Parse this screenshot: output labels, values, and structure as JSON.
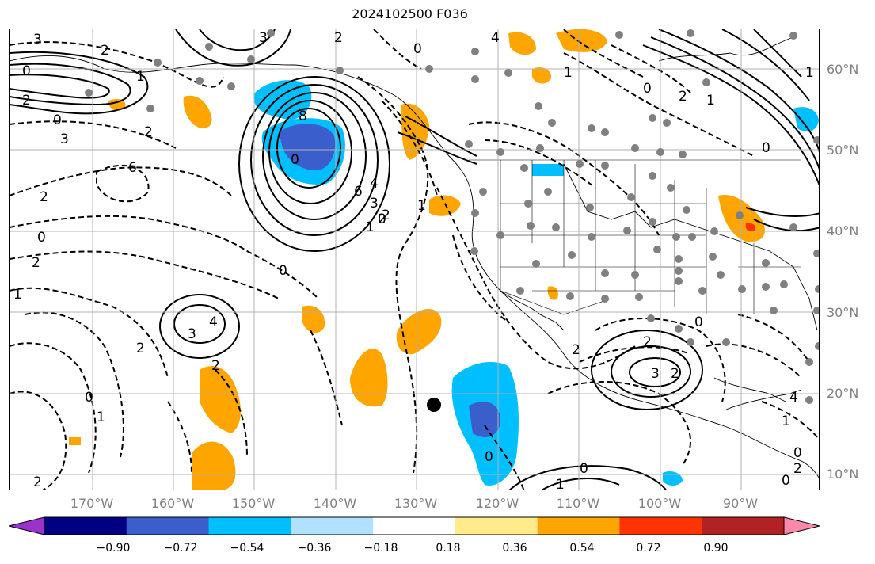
{
  "title": "2024102500 F036",
  "map": {
    "lat_labels": [
      "60°N",
      "50°N",
      "40°N",
      "30°N",
      "20°N",
      "10°N"
    ],
    "lon_labels": [
      "170°W",
      "160°W",
      "150°W",
      "140°W",
      "130°W",
      "120°W",
      "110°W",
      "100°W",
      "90°W"
    ],
    "gridline_color": "#b0b0b0",
    "contour_labels": [
      "3",
      "2",
      "0",
      "1",
      "3",
      "2",
      "0",
      "2",
      "3",
      "2",
      "4",
      "6",
      "2",
      "0",
      "8",
      "0",
      "6",
      "4",
      "3",
      "2",
      "1",
      "0",
      "2",
      "1",
      "0",
      "0",
      "2",
      "2",
      "1",
      "4",
      "3",
      "2",
      "0",
      "1",
      "2",
      "0",
      "1",
      "0",
      "2",
      "4",
      "2",
      "3",
      "2",
      "0",
      "1",
      "0",
      "0",
      "2",
      "1",
      "0",
      "2",
      "1",
      "0",
      "1"
    ],
    "marker": "tropical-cyclone-position"
  },
  "colorbar": {
    "tick_labels": [
      "−0.90",
      "−0.72",
      "−0.54",
      "−0.36",
      "−0.18",
      "0.18",
      "0.36",
      "0.54",
      "0.72",
      "0.90"
    ],
    "colors": [
      "#9933cc",
      "#000080",
      "#3a5fcd",
      "#00bfff",
      "#b0e2ff",
      "#ffffff",
      "#ffeb8a",
      "#ffa500",
      "#ff3300",
      "#b22222",
      "#ff88aa"
    ]
  }
}
